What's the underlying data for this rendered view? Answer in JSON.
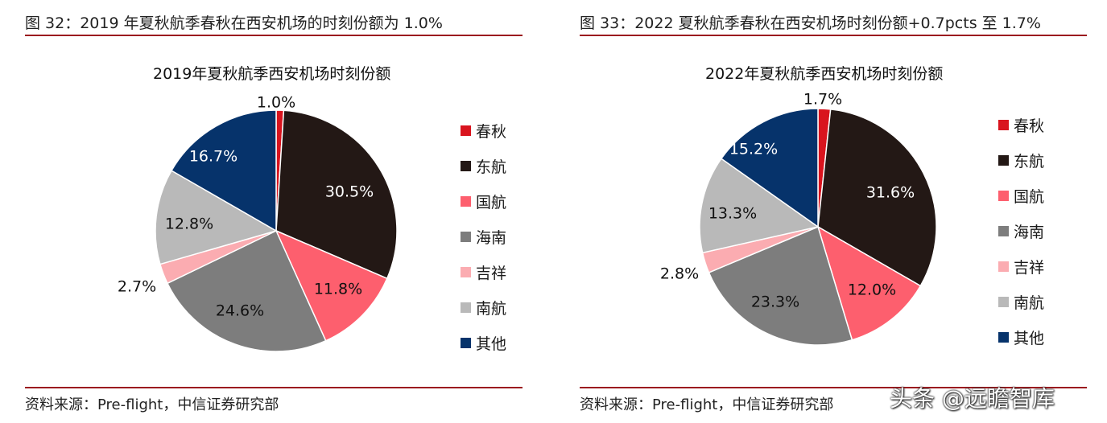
{
  "left": {
    "figure_title": "图 32：2019 年夏秋航季春秋在西安机场的时刻份额为 1.0%",
    "source": "资料来源：Pre-flight，中信证券研究部"
  },
  "right": {
    "figure_title": "图 33：2022 夏秋航季春秋在西安机场时刻份额+0.7pcts 至 1.7%",
    "source": "资料来源：Pre-flight，中信证券研究部"
  },
  "legend": [
    {
      "label": "春秋",
      "color": "#d9141e"
    },
    {
      "label": "东航",
      "color": "#231815"
    },
    {
      "label": "国航",
      "color": "#fd5f6e"
    },
    {
      "label": "海南",
      "color": "#7d7d7d"
    },
    {
      "label": "吉祥",
      "color": "#fbacb1"
    },
    {
      "label": "南航",
      "color": "#b9b9b9"
    },
    {
      "label": "其他",
      "color": "#06336b"
    }
  ],
  "watermark": "头条 @远瞻智库",
  "chart_data": [
    {
      "type": "pie",
      "title": "2019年夏秋航季西安机场时刻份额",
      "categories": [
        "春秋",
        "东航",
        "国航",
        "海南",
        "吉祥",
        "南航",
        "其他"
      ],
      "values": [
        1.0,
        30.5,
        11.8,
        24.6,
        2.7,
        12.8,
        16.7
      ],
      "labels": [
        "1.0%",
        "30.5%",
        "11.8%",
        "24.6%",
        "2.7%",
        "12.8%",
        "16.7%"
      ],
      "legend_position": "right"
    },
    {
      "type": "pie",
      "title": "2022年夏秋航季西安机场时刻份额",
      "categories": [
        "春秋",
        "东航",
        "国航",
        "海南",
        "吉祥",
        "南航",
        "其他"
      ],
      "values": [
        1.7,
        31.6,
        12.0,
        23.3,
        2.8,
        13.3,
        15.2
      ],
      "labels": [
        "1.7%",
        "31.6%",
        "12.0%",
        "23.3%",
        "2.8%",
        "13.3%",
        "15.2%"
      ],
      "legend_position": "right"
    }
  ]
}
